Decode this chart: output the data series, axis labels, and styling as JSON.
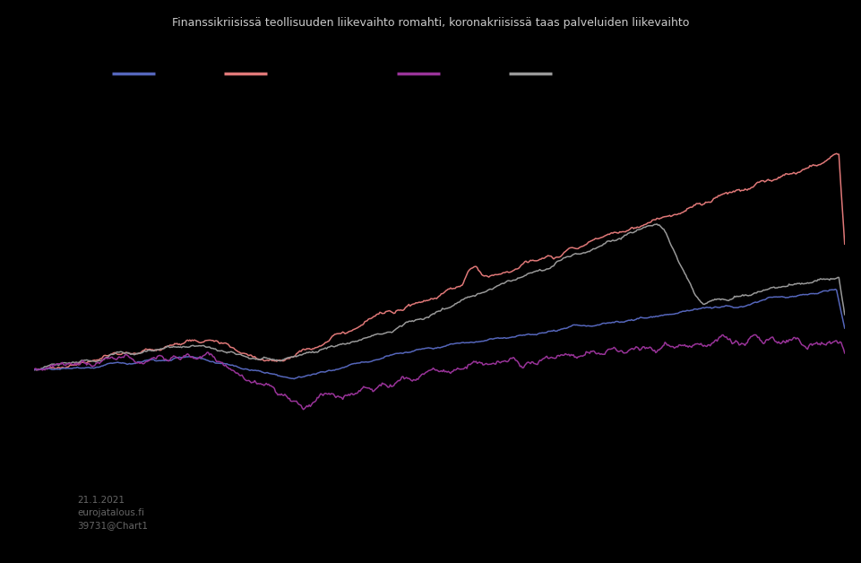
{
  "title": "Finanssikriisissä teollisuuden liikevaihto romahti, koronakriisissä taas palveluiden liikevaihto",
  "background_color": "#000000",
  "text_color": "#cccccc",
  "line_colors": [
    "#5566bb",
    "#e07878",
    "#993399",
    "#999999"
  ],
  "legend_colors": [
    "#5566bb",
    "#e07878",
    "#993399",
    "#999999"
  ],
  "watermark_line1": "21.1.2021",
  "watermark_line2": "eurojatalous.fi",
  "watermark_line3": "39731@Chart1",
  "n_points": 700,
  "seed": 77
}
